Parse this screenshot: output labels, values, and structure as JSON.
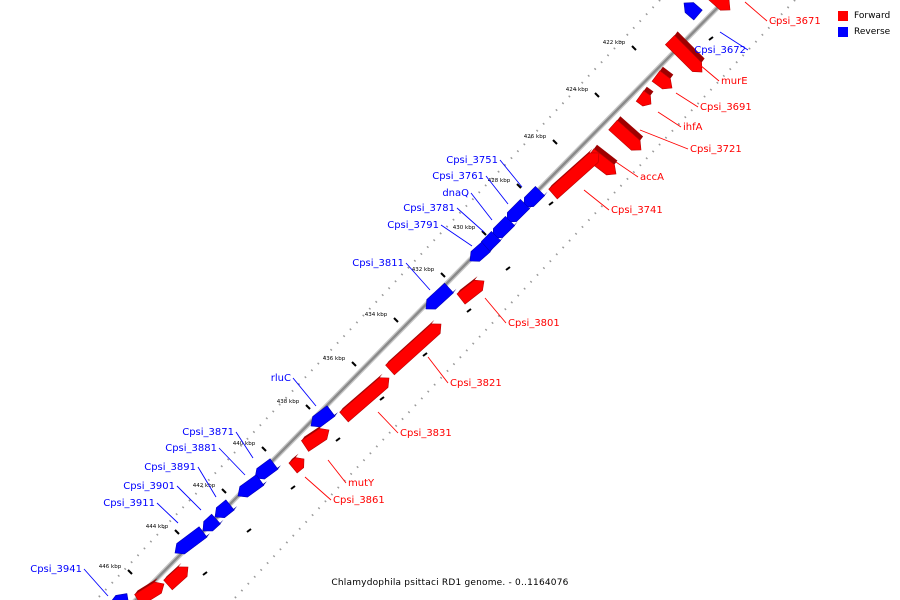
{
  "caption": "Chlamydophila psittaci RD1 genome. - 0..1164076",
  "legend": [
    {
      "label": "Forward",
      "color": "#ff0000"
    },
    {
      "label": "Reverse",
      "color": "#0000ff"
    }
  ],
  "colors": {
    "forward": "#ff0000",
    "reverse": "#0000ff",
    "backbone": "#8a8a8a"
  },
  "ticks": [
    "422 kbp",
    "424 kbp",
    "426 kbp",
    "428 kbp",
    "430 kbp",
    "432 kbp",
    "434 kbp",
    "436 kbp",
    "438 kbp",
    "440 kbp",
    "442 kbp",
    "444 kbp",
    "446 kbp"
  ],
  "forward_genes": [
    "Cpsi_3671",
    "murE",
    "Cpsi_3691",
    "ihfA",
    "Cpsi_3721",
    "accA",
    "Cpsi_3741",
    "Cpsi_3801",
    "Cpsi_3821",
    "Cpsi_3831",
    "mutY",
    "Cpsi_3861"
  ],
  "reverse_genes": [
    "Cpsi_3672",
    "Cpsi_3751",
    "Cpsi_3761",
    "dnaQ",
    "Cpsi_3781",
    "Cpsi_3791",
    "Cpsi_3811",
    "rluC",
    "Cpsi_3871",
    "Cpsi_3881",
    "Cpsi_3891",
    "Cpsi_3901",
    "Cpsi_3911",
    "Cpsi_3941"
  ]
}
